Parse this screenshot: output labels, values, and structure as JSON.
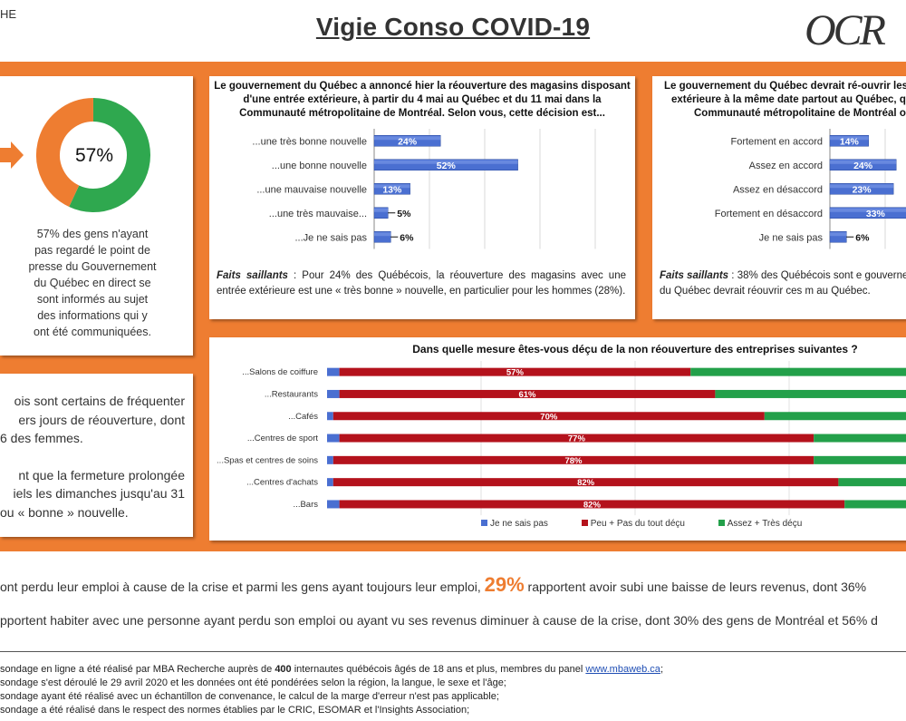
{
  "header": {
    "left_fragment": "HE",
    "title": "Vigie Conso COVID-19",
    "logo": "OCR"
  },
  "left_panel": {
    "donut_percent": "57%",
    "donut_value": 57,
    "caption": [
      "57% des gens n'ayant",
      "pas regardé le point de",
      "presse du Gouvernement",
      "du Québec en direct se",
      "sont informés au sujet",
      "des informations qui y",
      "ont été communiquées."
    ]
  },
  "left_text": {
    "lines": [
      "ois sont certains de fréquenter",
      "ers jours de réouverture, dont",
      "6 des femmes.",
      "",
      "nt que la fermeture prolongée",
      "iels les dimanches jusqu'au 31",
      "ou « bonne » nouvelle."
    ]
  },
  "colors": {
    "orange": "#ee7d31",
    "green": "#2fa84f",
    "blue": "#4a6fd1",
    "red": "#b4121c",
    "legend_green": "#23a04a"
  },
  "chart_data": [
    {
      "type": "bar",
      "title": "Le gouvernement du Québec a annoncé hier la réouverture des magasins disposant d'une entrée extérieure, à partir du 4 mai au Québec et du 11 mai dans la Communauté métropolitaine de Montréal. Selon vous, cette décision est...",
      "title_lines": [
        "Le gouvernement du Québec a annoncé hier la réouverture des magasins disposant",
        "d'une entrée extérieure, à partir du 4 mai au Québec et du 11 mai dans la",
        "Communauté métropolitaine de Montréal. Selon vous, cette décision est..."
      ],
      "categories": [
        "...une très bonne nouvelle",
        "...une bonne nouvelle",
        "...une mauvaise nouvelle",
        "...une très mauvaise...",
        "...Je ne sais pas"
      ],
      "values": [
        24,
        52,
        13,
        5,
        6
      ],
      "labels": [
        "24%",
        "52%",
        "13%",
        "5%",
        "6%"
      ],
      "note_label": "Faits saillants",
      "note_text": " : Pour 24% des Québécois, la réouverture des magasins avec une entrée extérieure est une « très bonne » nouvelle, en particulier pour les hommes (28%)."
    },
    {
      "type": "bar",
      "title_lines": [
        "Le gouvernement du Québec devrait ré-ouvrir les",
        "extérieure à la même date partout au Québec, q",
        "Communauté métropolitaine de Montréal o"
      ],
      "categories": [
        "Fortement en accord",
        "Assez en accord",
        "Assez en désaccord",
        "Fortement en désaccord",
        "Je ne sais pas"
      ],
      "values": [
        14,
        24,
        23,
        33,
        6
      ],
      "labels": [
        "14%",
        "24%",
        "23%",
        "33%",
        "6%"
      ],
      "note_label": "Faits saillants",
      "note_text": " : 38% des Québécois sont e gouvernement du Québec devrait réouvrir ces m au Québec."
    },
    {
      "type": "bar",
      "title": "Dans quelle mesure êtes-vous déçu de la non réouverture des entreprises suivantes ?",
      "categories": [
        "...Salons de coiffure",
        "...Restaurants",
        "...Cafés",
        "...Centres de sport",
        "...Spas et centres de soins",
        "...Centres d'achats",
        "...Bars"
      ],
      "series": [
        {
          "name": "Je ne sais pas",
          "values": [
            2,
            2,
            1,
            2,
            1,
            1,
            2
          ]
        },
        {
          "name": "Peu + Pas du tout déçu",
          "values": [
            57,
            61,
            70,
            77,
            78,
            82,
            82
          ]
        },
        {
          "name": "Assez + Très déçu",
          "values": [
            41,
            37,
            29,
            21,
            21,
            17,
            16
          ]
        }
      ],
      "labels": [
        "57%",
        "61%",
        "70%",
        "77%",
        "78%",
        "82%",
        "82%"
      ]
    }
  ],
  "stats": {
    "line1_pre": "ont perdu leur emploi à cause de la crise et parmi les gens ayant toujours leur emploi, ",
    "line1_big": "29%",
    "line1_post": " rapportent avoir subi une baisse de leurs revenus, dont 36%",
    "line2": "pportent habiter avec une personne ayant perdu son emploi ou ayant vu ses revenus diminuer à cause de la crise, dont 30% des gens de Montréal et 56% d"
  },
  "footer": {
    "l1_pre": "sondage en ligne a été réalisé par MBA Recherche auprès de ",
    "l1_num": "400",
    "l1_mid": " internautes québécois âgés de 18 ans et plus, membres du panel ",
    "l1_link": "www.mbaweb.ca",
    "l1_post": ";",
    "l2": "sondage s'est déroulé le 29 avril 2020 et les données ont été pondérées selon la région, la langue, le sexe et l'âge;",
    "l3": "sondage ayant été réalisé avec un échantillon de convenance, le calcul de la marge d'erreur n'est pas applicable;",
    "l4": "sondage a été réalisé dans le respect des normes établies par le CRIC, ESOMAR et l'Insights Association;"
  }
}
